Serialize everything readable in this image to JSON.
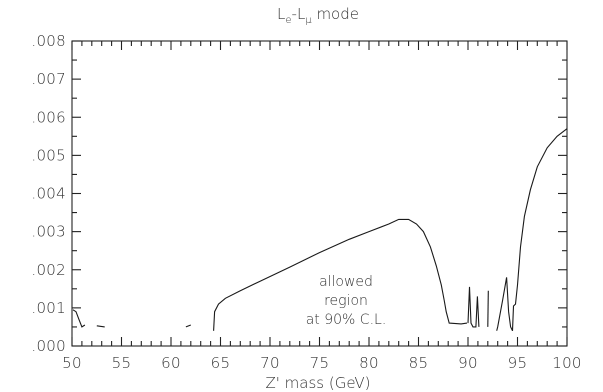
{
  "chart_data": {
    "type": "line",
    "title_parts": {
      "l1": "L",
      "s1": "e",
      "dash": "-",
      "l2": "L",
      "s2": "μ",
      "rest": " mode"
    },
    "xlabel": "Z' mass (GeV)",
    "ylabel": "",
    "xlim": [
      50,
      100
    ],
    "ylim": [
      0,
      0.008
    ],
    "x_ticks": [
      50,
      55,
      60,
      65,
      70,
      75,
      80,
      85,
      90,
      95,
      100
    ],
    "x_tick_labels": [
      "50",
      "55",
      "60",
      "65",
      "70",
      "75",
      "80",
      "85",
      "90",
      "95",
      "100"
    ],
    "y_ticks": [
      0,
      0.001,
      0.002,
      0.003,
      0.004,
      0.005,
      0.006,
      0.007,
      0.008
    ],
    "y_tick_labels": [
      ".000",
      ".001",
      ".002",
      ".003",
      ".004",
      ".005",
      ".006",
      ".007",
      ".008"
    ],
    "annotation": [
      "allowed",
      "region",
      "at 90% C.L."
    ],
    "grid": false,
    "series": [
      {
        "segments": [
          [
            [
              50.1,
              0.00095
            ],
            [
              50.4,
              0.0009
            ],
            [
              50.7,
              0.0007
            ],
            [
              51.0,
              0.0005
            ],
            [
              51.3,
              0.00055
            ]
          ],
          [
            [
              52.5,
              0.00053
            ],
            [
              53.3,
              0.0005
            ]
          ],
          [
            [
              61.5,
              0.0005
            ],
            [
              62.0,
              0.00055
            ]
          ],
          [
            [
              64.3,
              0.0004
            ],
            [
              64.4,
              0.0009
            ],
            [
              64.8,
              0.0011
            ],
            [
              65.5,
              0.00125
            ],
            [
              67.0,
              0.00145
            ],
            [
              69.0,
              0.0017
            ],
            [
              72.0,
              0.00207
            ],
            [
              75.0,
              0.00245
            ],
            [
              78.0,
              0.0028
            ],
            [
              80.0,
              0.003
            ],
            [
              82.0,
              0.0032
            ],
            [
              83.0,
              0.00332
            ],
            [
              84.0,
              0.00332
            ],
            [
              84.8,
              0.0032
            ],
            [
              85.5,
              0.003
            ],
            [
              86.2,
              0.0026
            ],
            [
              86.8,
              0.0021
            ],
            [
              87.3,
              0.0016
            ],
            [
              87.6,
              0.0012
            ],
            [
              87.8,
              0.0009
            ],
            [
              88.1,
              0.0006
            ],
            [
              89.3,
              0.00058
            ],
            [
              89.9,
              0.0006
            ]
          ],
          [
            [
              90.0,
              0.0006
            ],
            [
              90.15,
              0.00155
            ],
            [
              90.3,
              0.0006
            ],
            [
              90.5,
              0.0005
            ],
            [
              90.8,
              0.0005
            ],
            [
              90.95,
              0.0013
            ],
            [
              91.1,
              0.0005
            ]
          ],
          [
            [
              92.0,
              0.0005
            ],
            [
              92.05,
              0.00145
            ]
          ],
          [
            [
              92.9,
              0.0004
            ],
            [
              93.0,
              0.0005
            ],
            [
              93.5,
              0.0012
            ],
            [
              93.9,
              0.0018
            ],
            [
              94.1,
              0.0009
            ],
            [
              94.3,
              0.0005
            ],
            [
              94.5,
              0.0004
            ],
            [
              94.6,
              0.00105
            ],
            [
              94.8,
              0.0011
            ],
            [
              95.0,
              0.0016
            ],
            [
              95.3,
              0.0026
            ],
            [
              95.7,
              0.0034
            ],
            [
              96.3,
              0.0041
            ],
            [
              97.0,
              0.0047
            ],
            [
              98.0,
              0.0052
            ],
            [
              99.0,
              0.0055
            ],
            [
              100.0,
              0.0057
            ]
          ]
        ]
      }
    ]
  }
}
